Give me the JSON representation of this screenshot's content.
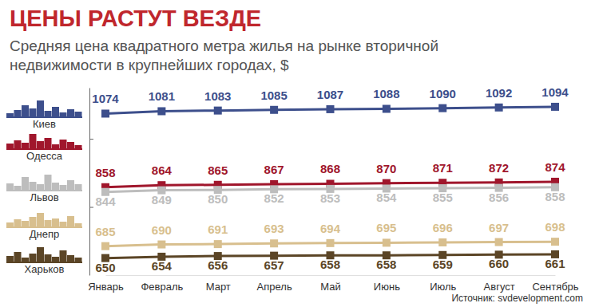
{
  "chart_data": {
    "type": "line",
    "title": "ЦЕНЫ РАСТУТ ВЕЗДЕ",
    "subtitle": "Средняя цена квадратного метра жилья на рынке вторичной\nнедвижимости в крупнейших городах, $",
    "source": "Источник: svdevelopment.com",
    "categories": [
      "Январь",
      "Февраль",
      "Март",
      "Апрель",
      "Май",
      "Июнь",
      "Июль",
      "Август",
      "Сентябрь"
    ],
    "series": [
      {
        "name": "Киев",
        "color": "#3d4f8c",
        "values": [
          1074,
          1081,
          1083,
          1085,
          1087,
          1088,
          1090,
          1092,
          1094
        ]
      },
      {
        "name": "Одесса",
        "color": "#a0162c",
        "values": [
          858,
          864,
          865,
          867,
          868,
          870,
          871,
          872,
          874
        ]
      },
      {
        "name": "Львов",
        "color": "#bdbdbd",
        "values": [
          844,
          849,
          850,
          852,
          853,
          854,
          855,
          856,
          858
        ]
      },
      {
        "name": "Днепр",
        "color": "#d8bf8e",
        "values": [
          685,
          690,
          691,
          693,
          694,
          695,
          696,
          697,
          698
        ]
      },
      {
        "name": "Харьков",
        "color": "#5b4526",
        "values": [
          650,
          654,
          656,
          657,
          658,
          658,
          659,
          660,
          661
        ]
      }
    ],
    "ylim": [
      600,
      1150
    ],
    "yticks": [
      800,
      1000
    ],
    "tick_labels": "x",
    "grid": false,
    "data_labels": true,
    "marker": "square",
    "legend": "left"
  }
}
